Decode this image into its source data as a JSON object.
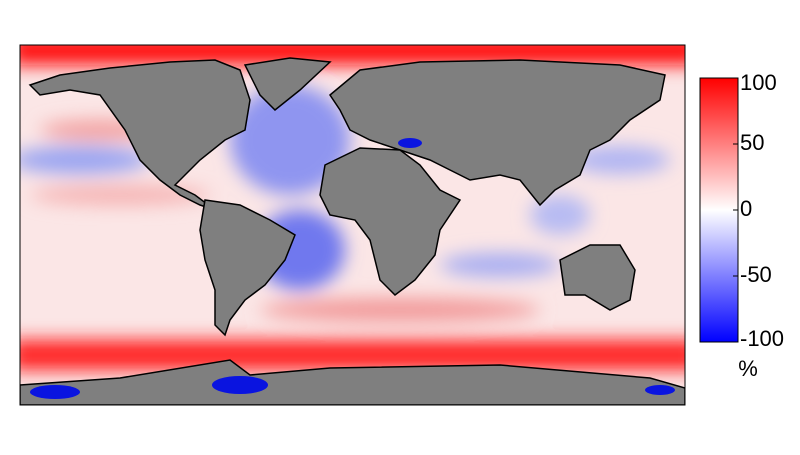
{
  "colorbar": {
    "lim": [
      -100,
      100
    ],
    "ticks": [
      100,
      50,
      0,
      -50,
      -100
    ],
    "unit": "%",
    "colors": [
      "#0000ff",
      "#ffffff",
      "#ff0000"
    ]
  }
}
